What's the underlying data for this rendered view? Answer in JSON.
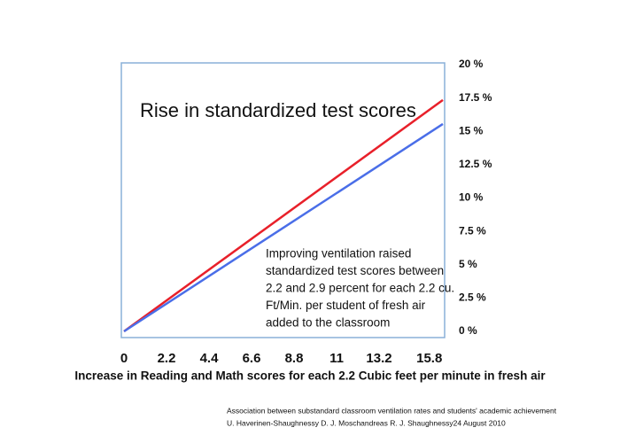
{
  "chart_data": {
    "type": "line",
    "title": "Rise in standardized test scores",
    "annotation": [
      "Improving ventilation raised",
      "standardized test scores between",
      "2.2 and 2.9 percent for each 2.2 cu.",
      "Ft/Min. per student of fresh air",
      "added to the classroom"
    ],
    "x_label": "Increase in Reading and Math scores for each 2.2 Cubic feet per minute in fresh air",
    "source": [
      "Association between substandard classroom ventilation rates and students' academic achievement",
      "U. Haverinen-Shaughnessy  D. J. Moschandreas  R. J. Shaughnessy24 August 2010"
    ],
    "x": [
      0,
      16.5
    ],
    "series": [
      {
        "color": "#e8202a",
        "values": [
          0,
          17.35
        ]
      },
      {
        "color": "#4a6ee8",
        "values": [
          0,
          15.55
        ]
      }
    ],
    "xlim": [
      0,
      16.5
    ],
    "xticks": [
      0,
      2.2,
      4.4,
      6.6,
      8.8,
      11,
      13.2,
      15.8
    ],
    "ylim": [
      0,
      20
    ],
    "yticks": [
      {
        "value": 0,
        "label": "0 %"
      },
      {
        "value": 2.5,
        "label": "2.5 %"
      },
      {
        "value": 5,
        "label": "5 %"
      },
      {
        "value": 7.5,
        "label": "7.5 %"
      },
      {
        "value": 10,
        "label": "10 %"
      },
      {
        "value": 12.5,
        "label": "12.5 %"
      },
      {
        "value": 15,
        "label": "15 %"
      },
      {
        "value": 17.5,
        "label": "17.5 %"
      },
      {
        "value": 20,
        "label": "20 %"
      }
    ],
    "grid": false
  }
}
